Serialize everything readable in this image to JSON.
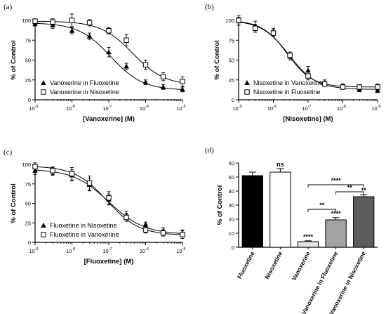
{
  "chart_data": [
    {
      "panel": "(a)",
      "type": "scatter",
      "xscale": "log",
      "xlim": [
        "1e-9",
        "1e-5"
      ],
      "ylim": [
        0,
        100
      ],
      "xticks": [
        -9,
        -8,
        -7,
        -6,
        -5
      ],
      "yticks": [
        0,
        25,
        50,
        75,
        100
      ],
      "xlabel": "[Vanoxerine] (M)",
      "ylabel": "% of Control",
      "legend": "bottom-left",
      "series": [
        {
          "name": "Vanoxerine in Fluoxetine",
          "marker": "triangle",
          "x": [
            "1e-9",
            "3e-9",
            "1e-8",
            "3e-8",
            "1e-7",
            "3e-7",
            "1e-6",
            "3e-6",
            "1e-5"
          ],
          "y": [
            96,
            94,
            87,
            80,
            60,
            42,
            22,
            16,
            13
          ],
          "err": [
            3,
            4,
            4,
            4,
            6,
            4,
            3,
            3,
            3
          ],
          "fit": {
            "top": 97,
            "bottom": 12,
            "logEC50": -6.95,
            "hill": 1.0
          }
        },
        {
          "name": "Vanoxerine in Nisoxetine",
          "marker": "square",
          "x": [
            "1e-9",
            "3e-9",
            "1e-8",
            "3e-8",
            "1e-7",
            "3e-7",
            "1e-6",
            "3e-6",
            "1e-5"
          ],
          "y": [
            99,
            98,
            100,
            97,
            87,
            75,
            44,
            29,
            23
          ],
          "err": [
            3,
            4,
            8,
            4,
            4,
            7,
            6,
            5,
            6
          ],
          "fit": {
            "top": 99,
            "bottom": 18,
            "logEC50": -6.35,
            "hill": 1.0
          }
        }
      ]
    },
    {
      "panel": "(b)",
      "type": "scatter",
      "xscale": "log",
      "xlim": [
        "1e-9",
        "1e-5"
      ],
      "ylim": [
        0,
        100
      ],
      "xticks": [
        -9,
        -8,
        -7,
        -6,
        -5
      ],
      "yticks": [
        0,
        25,
        50,
        75,
        100
      ],
      "xlabel": "[Nisoxetine] (M)",
      "ylabel": "% of Control",
      "legend": "bottom-left",
      "series": [
        {
          "name": "Nisoxetine in Vanoxerine",
          "marker": "triangle",
          "x": [
            "1e-9",
            "3e-9",
            "1e-8",
            "3e-8",
            "1e-7",
            "3e-7",
            "1e-6",
            "3e-6",
            "1e-5"
          ],
          "y": [
            99,
            93,
            85,
            55,
            37,
            22,
            17,
            13,
            12
          ],
          "err": [
            5,
            6,
            5,
            5,
            5,
            3,
            3,
            3,
            3
          ],
          "fit": {
            "top": 100,
            "bottom": 13,
            "logEC50": -7.55,
            "hill": 1.1
          }
        },
        {
          "name": "Nisoxetine in Fluoxetine",
          "marker": "square",
          "x": [
            "1e-9",
            "3e-9",
            "1e-8",
            "3e-8",
            "1e-7",
            "3e-7",
            "1e-6",
            "3e-6",
            "1e-5"
          ],
          "y": [
            100,
            90,
            84,
            56,
            30,
            20,
            16,
            16,
            16
          ],
          "err": [
            6,
            5,
            4,
            4,
            5,
            3,
            3,
            3,
            4
          ],
          "fit": {
            "top": 100,
            "bottom": 16,
            "logEC50": -7.6,
            "hill": 1.2
          }
        }
      ]
    },
    {
      "panel": "(c)",
      "type": "scatter",
      "xscale": "log",
      "xlim": [
        "1e-9",
        "1e-5"
      ],
      "ylim": [
        0,
        100
      ],
      "xticks": [
        -9,
        -8,
        -7,
        -6,
        -5
      ],
      "yticks": [
        0,
        25,
        50,
        75,
        100
      ],
      "xlabel": "[Fluoxetine] (M)",
      "ylabel": "% of Control",
      "legend": "bottom-left",
      "series": [
        {
          "name": "Fluoxetine in Nisoxetine",
          "marker": "triangle",
          "x": [
            "1e-9",
            "3e-9",
            "1e-8",
            "3e-8",
            "1e-7",
            "3e-7",
            "1e-6",
            "3e-6",
            "1e-5"
          ],
          "y": [
            92,
            91,
            86,
            74,
            55,
            35,
            23,
            15,
            12
          ],
          "err": [
            5,
            5,
            7,
            8,
            7,
            5,
            3,
            4,
            4
          ],
          "fit": {
            "top": 94,
            "bottom": 10,
            "logEC50": -7.0,
            "hill": 0.9
          }
        },
        {
          "name": "Fluoxetine in Vanoxerine",
          "marker": "square",
          "x": [
            "1e-9",
            "3e-9",
            "1e-8",
            "3e-8",
            "1e-7",
            "3e-7",
            "1e-6",
            "3e-6",
            "1e-5"
          ],
          "y": [
            97,
            92,
            88,
            76,
            57,
            32,
            16,
            12,
            10
          ],
          "err": [
            5,
            5,
            8,
            9,
            8,
            5,
            4,
            4,
            5
          ],
          "fit": {
            "top": 98,
            "bottom": 9,
            "logEC50": -7.05,
            "hill": 1.0
          }
        }
      ]
    },
    {
      "panel": "(d)",
      "type": "bar",
      "ylabel": "% of Control",
      "ylim": [
        0,
        60
      ],
      "yticks": [
        0,
        10,
        20,
        30,
        40,
        50,
        60
      ],
      "categories": [
        "Fluoxetine",
        "Nisoxetine",
        "Vanoxerine",
        "Vanoxerine in Fluoxetine",
        "Vanoxerine in Nisoxetine"
      ],
      "values": [
        51,
        53.5,
        4,
        19.5,
        36
      ],
      "errors": [
        2.5,
        2.5,
        0.6,
        1.6,
        1.4
      ],
      "colors": [
        "#000000",
        "#ffffff",
        "#e3e3e3",
        "#a3a3a3",
        "#5c5c5c"
      ],
      "bar_labels": [
        "",
        "ns",
        "****",
        "****",
        "**"
      ],
      "brackets": [
        {
          "from": 2,
          "to": 3,
          "y": 27,
          "label": "**"
        },
        {
          "from": 2,
          "to": 4,
          "y": 44.5,
          "label": "****"
        },
        {
          "from": 3,
          "to": 4,
          "y": 39.5,
          "label": "**"
        }
      ]
    }
  ]
}
